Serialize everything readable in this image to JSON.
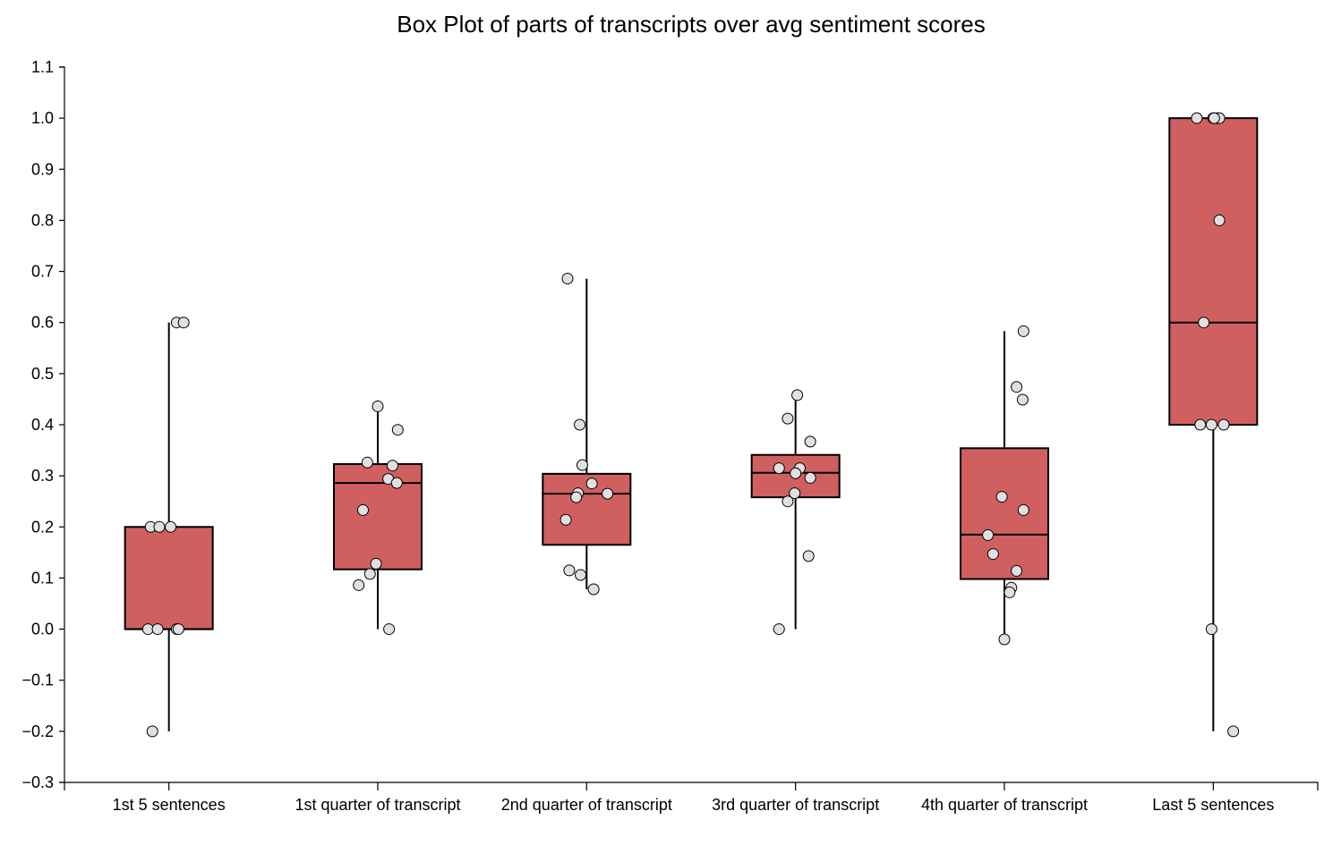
{
  "chart_data": {
    "type": "box",
    "title": "Box Plot of parts of transcripts over avg sentiment scores",
    "xlabel": "",
    "ylabel": "",
    "ylim": [
      -0.3,
      1.1
    ],
    "ytick_values": [
      -0.3,
      -0.2,
      -0.1,
      0.0,
      0.1,
      0.2,
      0.3,
      0.4,
      0.5,
      0.6,
      0.7,
      0.8,
      0.9,
      1.0,
      1.1
    ],
    "ytick_labels": [
      "−0.3",
      "−0.2",
      "−0.1",
      "0.0",
      "0.1",
      "0.2",
      "0.3",
      "0.4",
      "0.5",
      "0.6",
      "0.7",
      "0.8",
      "0.9",
      "1.0",
      "1.1"
    ],
    "grid": false,
    "colors": {
      "box_fill": "#d05f5f",
      "point_fill": "#e0e0e0",
      "stroke": "#000000"
    },
    "categories": [
      "1st 5 sentences",
      "1st quarter of transcript",
      "2nd quarter of transcript",
      "3rd quarter of transcript",
      "4th quarter of transcript",
      "Last 5 sentences"
    ],
    "boxes": [
      {
        "category": "1st 5 sentences",
        "whisker_low": -0.2,
        "q1": 0.0,
        "median": 0.0,
        "q3": 0.2,
        "whisker_high": 0.6,
        "points": [
          0.6,
          0.6,
          0.2,
          0.2,
          0.2,
          0.0,
          0.0,
          0.0,
          0.0,
          -0.2
        ],
        "jitter": [
          0.09,
          0.17,
          -0.21,
          -0.11,
          0.02,
          -0.24,
          -0.13,
          0.09,
          0.11,
          -0.19
        ]
      },
      {
        "category": "1st quarter of transcript",
        "whisker_low": 0.0,
        "q1": 0.117,
        "median": 0.286,
        "q3": 0.323,
        "whisker_high": 0.436,
        "points": [
          0.436,
          0.39,
          0.326,
          0.32,
          0.294,
          0.286,
          0.233,
          0.128,
          0.108,
          0.086,
          0.0
        ],
        "jitter": [
          0.0,
          0.23,
          -0.12,
          0.17,
          0.12,
          0.22,
          -0.17,
          -0.02,
          -0.09,
          -0.22,
          0.13
        ]
      },
      {
        "category": "2nd quarter of transcript",
        "whisker_low": 0.078,
        "q1": 0.165,
        "median": 0.265,
        "q3": 0.304,
        "whisker_high": 0.686,
        "points": [
          0.686,
          0.4,
          0.321,
          0.285,
          0.266,
          0.265,
          0.258,
          0.214,
          0.115,
          0.106,
          0.078
        ],
        "jitter": [
          -0.22,
          -0.08,
          -0.05,
          0.06,
          -0.1,
          0.24,
          -0.12,
          -0.24,
          -0.2,
          -0.07,
          0.08
        ]
      },
      {
        "category": "3rd quarter of transcript",
        "whisker_low": 0.0,
        "q1": 0.258,
        "median": 0.306,
        "q3": 0.341,
        "whisker_high": 0.458,
        "points": [
          0.458,
          0.412,
          0.367,
          0.315,
          0.315,
          0.305,
          0.296,
          0.266,
          0.25,
          0.143,
          0.0
        ],
        "jitter": [
          0.02,
          -0.09,
          0.17,
          -0.19,
          0.05,
          0.0,
          0.17,
          -0.01,
          -0.09,
          0.15,
          -0.19
        ]
      },
      {
        "category": "4th quarter of transcript",
        "whisker_low": -0.02,
        "q1": 0.098,
        "median": 0.185,
        "q3": 0.354,
        "whisker_high": 0.583,
        "points": [
          0.583,
          0.474,
          0.449,
          0.259,
          0.233,
          0.184,
          0.147,
          0.114,
          0.081,
          0.072,
          -0.02
        ],
        "jitter": [
          0.22,
          0.14,
          0.21,
          -0.03,
          0.22,
          -0.19,
          -0.13,
          0.14,
          0.08,
          0.06,
          0.0
        ]
      },
      {
        "category": "Last 5 sentences",
        "whisker_low": -0.2,
        "q1": 0.4,
        "median": 0.6,
        "q3": 1.0,
        "whisker_high": 1.0,
        "points": [
          1.0,
          1.0,
          1.0,
          1.0,
          1.0,
          0.8,
          0.6,
          0.4,
          0.4,
          0.4,
          0.0,
          -0.2
        ],
        "jitter": [
          -0.19,
          0.0,
          0.05,
          0.07,
          0.01,
          0.07,
          -0.11,
          -0.15,
          -0.02,
          0.12,
          -0.02,
          0.23
        ]
      }
    ]
  }
}
